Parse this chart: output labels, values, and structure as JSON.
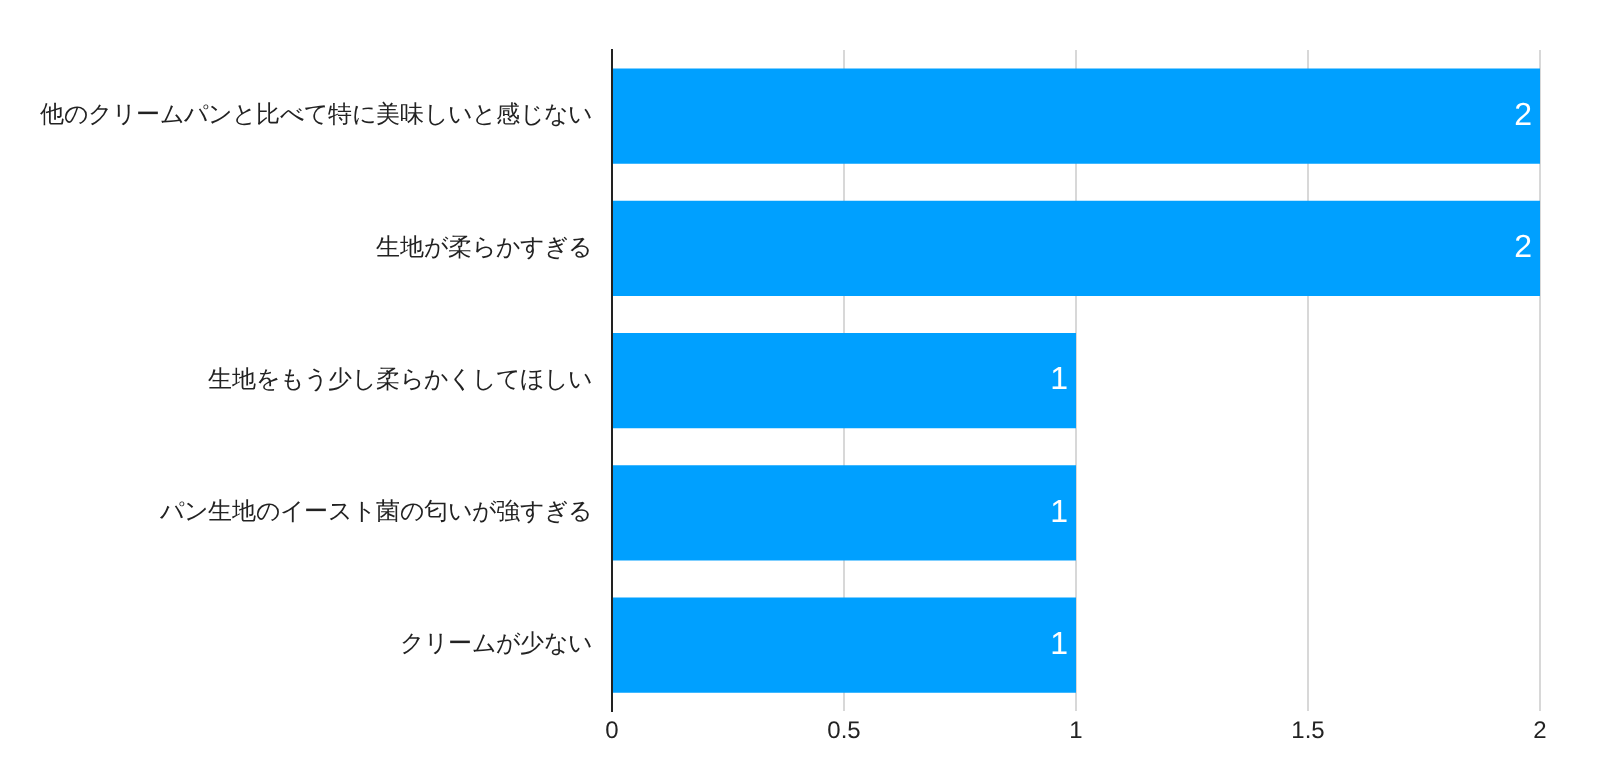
{
  "chart_data": {
    "type": "bar",
    "orientation": "horizontal",
    "categories": [
      "他のクリームパンと比べて特に美味しいと感じない",
      "生地が柔らかすぎる",
      "生地をもう少し柔らかくしてほしい",
      "パン生地のイースト菌の匂いが強すぎる",
      "クリームが少ない"
    ],
    "values": [
      2,
      2,
      1,
      1,
      1
    ],
    "color": "#00a0ff",
    "xlim": [
      0,
      2
    ],
    "xticks": [
      0,
      0.5,
      1,
      1.5,
      2
    ],
    "grid": "x",
    "data_labels": true
  }
}
